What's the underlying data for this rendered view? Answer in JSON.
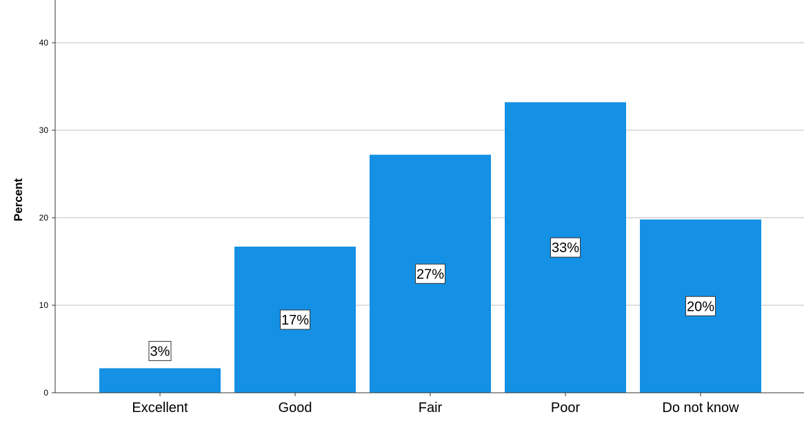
{
  "chart_data": {
    "type": "bar",
    "title": "",
    "xlabel": "",
    "ylabel": "Percent",
    "ylim": [
      0,
      45
    ],
    "yticks": [
      0,
      10,
      20,
      30,
      40
    ],
    "grid": true,
    "categories": [
      "Excellent",
      "Good",
      "Fair",
      "Poor",
      "Do not know"
    ],
    "values": [
      2.8,
      16.7,
      27.2,
      33.2,
      19.8
    ],
    "data_labels": [
      "3%",
      "17%",
      "27%",
      "33%",
      "20%"
    ],
    "bar_color": "#1490e4"
  }
}
